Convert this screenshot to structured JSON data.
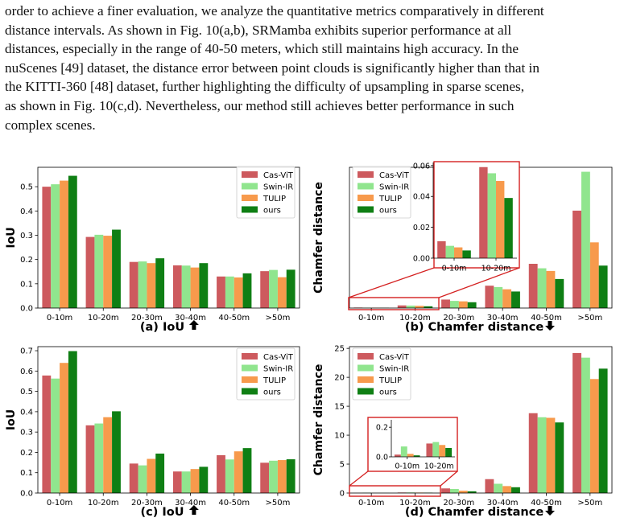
{
  "paragraph": {
    "lines": [
      "order to achieve a finer evaluation, we analyze the quantitative metrics comparatively in different",
      "distance intervals.  As shown in Fig. 10(a,b), SRMamba exhibits superior performance at all",
      "distances, especially in the range of 40-50 meters, which still maintains high accuracy.  In the",
      "nuScenes [49] dataset, the distance error between point clouds is significantly higher than that in",
      "the KITTI-360 [48] dataset, further highlighting the difficulty of upsampling in sparse scenes,",
      "as shown in Fig. 10(c,d).  Nevertheless, our method still achieves better performance in such",
      "complex scenes."
    ]
  },
  "colors": {
    "Cas-ViT": "#cd5a5e",
    "Swin-IR": "#90e58e",
    "TULIP": "#f79a4c",
    "ours": "#0f7f14"
  },
  "chart_data": [
    {
      "id": "a",
      "type": "bar",
      "caption": "(a) IoU",
      "caption_arrow": "up",
      "ylabel": "IoU",
      "ylim": [
        0,
        0.58
      ],
      "yticks": [
        "0.0",
        "0.1",
        "0.2",
        "0.3",
        "0.4",
        "0.5"
      ],
      "categories": [
        "0-10m",
        "10-20m",
        "20-30m",
        "30-40m",
        "40-50m",
        ">50m"
      ],
      "legend": "top-right",
      "series": [
        {
          "name": "Cas-ViT",
          "values": [
            0.5,
            0.293,
            0.19,
            0.176,
            0.13,
            0.152
          ]
        },
        {
          "name": "Swin-IR",
          "values": [
            0.51,
            0.302,
            0.192,
            0.175,
            0.13,
            0.157
          ]
        },
        {
          "name": "TULIP",
          "values": [
            0.525,
            0.298,
            0.185,
            0.167,
            0.126,
            0.127
          ]
        },
        {
          "name": "ours",
          "values": [
            0.545,
            0.323,
            0.205,
            0.185,
            0.143,
            0.158
          ]
        }
      ]
    },
    {
      "id": "b",
      "type": "bar",
      "caption": "(b) Chamfer distance",
      "caption_arrow": "down",
      "ylabel": "Chamfer distance",
      "ylim": [
        0,
        3.15
      ],
      "yticks": [],
      "categories": [
        "0-10m",
        "10-20m",
        "20-30m",
        "30-40m",
        "40-50m",
        ">50m"
      ],
      "legend": "top-left",
      "series": [
        {
          "name": "Cas-ViT",
          "values": [
            0.011,
            0.059,
            0.19,
            0.5,
            0.99,
            2.18
          ]
        },
        {
          "name": "Swin-IR",
          "values": [
            0.008,
            0.055,
            0.16,
            0.47,
            0.89,
            3.05
          ]
        },
        {
          "name": "TULIP",
          "values": [
            0.007,
            0.05,
            0.15,
            0.42,
            0.83,
            1.47
          ]
        },
        {
          "name": "ours",
          "values": [
            0.005,
            0.039,
            0.13,
            0.37,
            0.65,
            0.95
          ]
        }
      ],
      "inset": {
        "categories": [
          "0-10m",
          "10-20m"
        ],
        "ylim": [
          0,
          0.062
        ],
        "yticks": [
          "0.00",
          "0.02",
          "0.04",
          "0.06"
        ]
      }
    },
    {
      "id": "c",
      "type": "bar",
      "caption": "(c) IoU",
      "caption_arrow": "up",
      "ylabel": "IoU",
      "ylim": [
        0,
        0.72
      ],
      "yticks": [
        "0.0",
        "0.1",
        "0.2",
        "0.3",
        "0.4",
        "0.5",
        "0.6",
        "0.7"
      ],
      "categories": [
        "0-10m",
        "10-20m",
        "20-30m",
        "30-40m",
        "40-50m",
        ">50m"
      ],
      "legend": "top-right",
      "series": [
        {
          "name": "Cas-ViT",
          "values": [
            0.578,
            0.333,
            0.145,
            0.106,
            0.186,
            0.149
          ]
        },
        {
          "name": "Swin-IR",
          "values": [
            0.563,
            0.342,
            0.136,
            0.106,
            0.165,
            0.159
          ]
        },
        {
          "name": "TULIP",
          "values": [
            0.64,
            0.373,
            0.168,
            0.118,
            0.205,
            0.162
          ]
        },
        {
          "name": "ours",
          "values": [
            0.698,
            0.402,
            0.194,
            0.129,
            0.221,
            0.166
          ]
        }
      ]
    },
    {
      "id": "d",
      "type": "bar",
      "caption": "(d) Chamfer distance",
      "caption_arrow": "down",
      "ylabel": "Chamfer distance",
      "ylim": [
        0,
        25.3
      ],
      "yticks": [
        "0",
        "5",
        "10",
        "15",
        "20",
        "25"
      ],
      "categories": [
        "0-10m",
        "10-20m",
        "20-30m",
        "30-40m",
        "40-50m",
        ">50m"
      ],
      "legend": "top-left",
      "series": [
        {
          "name": "Cas-ViT",
          "values": [
            0.015,
            0.09,
            0.8,
            2.4,
            13.8,
            24.2
          ]
        },
        {
          "name": "Swin-IR",
          "values": [
            0.07,
            0.1,
            0.7,
            1.6,
            13.1,
            23.4
          ]
        },
        {
          "name": "TULIP",
          "values": [
            0.02,
            0.08,
            0.4,
            1.2,
            13.0,
            19.7
          ]
        },
        {
          "name": "ours",
          "values": [
            0.01,
            0.06,
            0.3,
            1.0,
            12.2,
            21.5
          ]
        }
      ],
      "inset": {
        "categories": [
          "0-10m",
          "10-20m"
        ],
        "ylim": [
          0,
          0.25
        ],
        "yticks": [
          "0.0",
          "0.2"
        ]
      }
    }
  ]
}
